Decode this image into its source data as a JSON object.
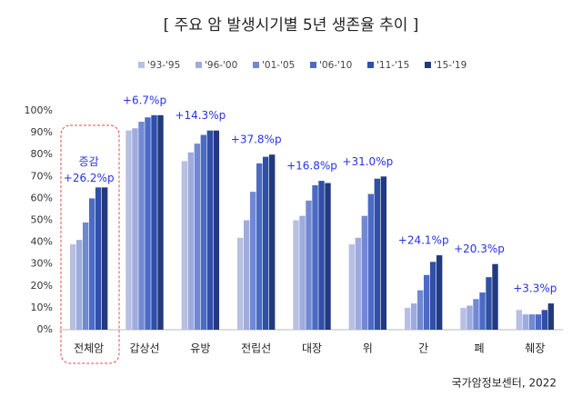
{
  "chart_data": {
    "type": "bar",
    "title": "[ 주요 암 발생시기별 5년 생존율 추이 ]",
    "categories": [
      "전체암",
      "갑상선",
      "유방",
      "전립선",
      "대장",
      "위",
      "간",
      "폐",
      "췌장"
    ],
    "series": [
      {
        "name": "'93-'95",
        "color": "#b7bfe2",
        "values": [
          39,
          91,
          77,
          42,
          50,
          39,
          10,
          10,
          9
        ]
      },
      {
        "name": "'96-'00",
        "color": "#9eabde",
        "values": [
          41,
          92,
          81,
          50,
          52,
          42,
          12,
          11,
          7
        ]
      },
      {
        "name": "'01-'05",
        "color": "#7189d2",
        "values": [
          49,
          95,
          85,
          63,
          59,
          52,
          18,
          14,
          7
        ]
      },
      {
        "name": "'06-'10",
        "color": "#4c6bc6",
        "values": [
          60,
          97,
          89,
          76,
          66,
          62,
          25,
          17,
          7
        ]
      },
      {
        "name": "'11-'15",
        "color": "#2f4fa8",
        "values": [
          65,
          98,
          91,
          79,
          68,
          69,
          31,
          24,
          9
        ]
      },
      {
        "name": "'15-'19",
        "color": "#23397f",
        "values": [
          65,
          98,
          91,
          80,
          67,
          70,
          34,
          30,
          12
        ]
      }
    ],
    "annotation_note": "증감",
    "annotations": [
      "+26.2%p",
      "+6.7%p",
      "+14.3%p",
      "+37.8%p",
      "+16.8%p",
      "+31.0%p",
      "+24.1%p",
      "+20.3%p",
      "+3.3%p"
    ],
    "ylim": [
      0,
      100
    ],
    "yticks": [
      {
        "value": 0,
        "label": "0%"
      },
      {
        "value": 10,
        "label": "10%"
      },
      {
        "value": 20,
        "label": "20%"
      },
      {
        "value": 30,
        "label": "30%"
      },
      {
        "value": 40,
        "label": "40%"
      },
      {
        "value": 50,
        "label": "50%"
      },
      {
        "value": 60,
        "label": "60%"
      },
      {
        "value": 70,
        "label": "70%"
      },
      {
        "value": 80,
        "label": "80%"
      },
      {
        "value": 90,
        "label": "90%"
      },
      {
        "value": 100,
        "label": "100%"
      }
    ],
    "grid": false,
    "source": "국가암정보센터, 2022"
  }
}
